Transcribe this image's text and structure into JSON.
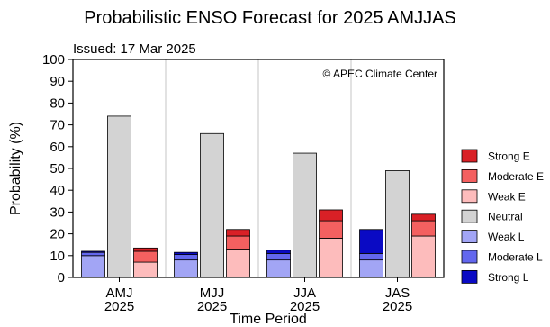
{
  "chart_data": {
    "type": "bar",
    "title": "Probabilistic ENSO Forecast for 2025 AMJJAS",
    "issued": "Issued: 17 Mar 2025",
    "credit": "© APEC Climate Center",
    "xlabel": "Time Period",
    "ylabel": "Probability (%)",
    "ylim": [
      0,
      100
    ],
    "yticks": [
      0,
      10,
      20,
      30,
      40,
      50,
      60,
      70,
      80,
      90,
      100
    ],
    "categories": [
      {
        "label": "AMJ",
        "year": "2025"
      },
      {
        "label": "MJJ",
        "year": "2025"
      },
      {
        "label": "JJA",
        "year": "2025"
      },
      {
        "label": "JAS",
        "year": "2025"
      }
    ],
    "stacks": [
      {
        "id": "la_nina",
        "segments": [
          "weak_l",
          "moderate_l",
          "strong_l"
        ]
      },
      {
        "id": "neutral",
        "segments": [
          "neutral"
        ]
      },
      {
        "id": "el_nino",
        "segments": [
          "weak_e",
          "moderate_e",
          "strong_e"
        ]
      }
    ],
    "series": [
      {
        "key": "strong_e",
        "name": "Strong E",
        "color": "#d92026",
        "values": [
          1.5,
          3,
          5,
          3
        ]
      },
      {
        "key": "moderate_e",
        "name": "Moderate E",
        "color": "#f46060",
        "values": [
          5,
          6,
          8,
          7
        ]
      },
      {
        "key": "weak_e",
        "name": "Weak E",
        "color": "#fdbcbc",
        "values": [
          7,
          13,
          18,
          19
        ]
      },
      {
        "key": "neutral",
        "name": "Neutral",
        "color": "#d3d3d3",
        "values": [
          74,
          66,
          57,
          49
        ]
      },
      {
        "key": "weak_l",
        "name": "Weak L",
        "color": "#a2a5f5",
        "values": [
          10,
          8,
          8,
          8
        ]
      },
      {
        "key": "moderate_l",
        "name": "Moderate L",
        "color": "#6367ee",
        "values": [
          1.5,
          2.5,
          3,
          3
        ]
      },
      {
        "key": "strong_l",
        "name": "Strong L",
        "color": "#0a0ac4",
        "values": [
          0.5,
          1,
          1.5,
          11
        ]
      }
    ],
    "legend_order": [
      "strong_e",
      "moderate_e",
      "weak_e",
      "neutral",
      "weak_l",
      "moderate_l",
      "strong_l"
    ],
    "grid": "vertical separators between periods",
    "legend_position": "right"
  }
}
